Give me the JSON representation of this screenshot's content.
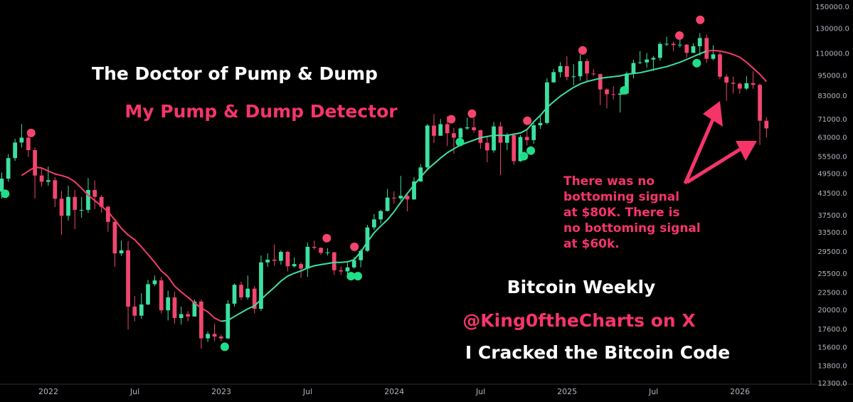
{
  "chart_data": {
    "type": "candlestick",
    "title": "The Doctor of Pump & Dump",
    "subtitle": "My Pump & Dump Detector",
    "annotation": [
      "There was no",
      "bottoming signal",
      "at $80K. There is",
      "no bottoming signal",
      "at $60k."
    ],
    "notes": [
      "Bitcoin Weekly",
      "@King0ftheCharts on X",
      "I Cracked the Bitcoin Code"
    ],
    "log_scale": true,
    "grid": false,
    "up_color": "#3de0a1",
    "down_color": "#f2466e",
    "xlim": [
      2021.72,
      2026.411
    ],
    "xticks": [
      {
        "value": 2022,
        "label": "2022"
      },
      {
        "value": 2022.5,
        "label": "Jul"
      },
      {
        "value": 2023,
        "label": "2023"
      },
      {
        "value": 2023.5,
        "label": "Jul"
      },
      {
        "value": 2024,
        "label": "2024"
      },
      {
        "value": 2024.5,
        "label": "Jul"
      },
      {
        "value": 2025,
        "label": "2025"
      },
      {
        "value": 2025.5,
        "label": "Jul"
      },
      {
        "value": 2026,
        "label": "2026"
      }
    ],
    "ylim": [
      12240,
      157300
    ],
    "yticks": [
      {
        "value": 150000,
        "label": "150000.0"
      },
      {
        "value": 130000,
        "label": "130000.0"
      },
      {
        "value": 110000,
        "label": "110000.0"
      },
      {
        "value": 95000,
        "label": "95000.0"
      },
      {
        "value": 83000,
        "label": "83000.0"
      },
      {
        "value": 71000,
        "label": "71000.0"
      },
      {
        "value": 63000,
        "label": "63000.0"
      },
      {
        "value": 55500,
        "label": "55500.0"
      },
      {
        "value": 49500,
        "label": "49500.0"
      },
      {
        "value": 43500,
        "label": "43500.0"
      },
      {
        "value": 37500,
        "label": "37500.0"
      },
      {
        "value": 33500,
        "label": "33500.0"
      },
      {
        "value": 29500,
        "label": "29500.0"
      },
      {
        "value": 25500,
        "label": "25500.0"
      },
      {
        "value": 22500,
        "label": "22500.0"
      },
      {
        "value": 20000,
        "label": "20000.0"
      },
      {
        "value": 17600,
        "label": "17600.0"
      },
      {
        "value": 15600,
        "label": "15600.0"
      },
      {
        "value": 13800,
        "label": "13800.0"
      },
      {
        "value": 12300,
        "label": "12300.0"
      }
    ],
    "x": [
      2021.73,
      2021.768,
      2021.807,
      2021.845,
      2021.884,
      2021.922,
      2021.961,
      2021.999,
      2022.038,
      2022.076,
      2022.115,
      2022.153,
      2022.192,
      2022.23,
      2022.268,
      2022.307,
      2022.345,
      2022.384,
      2022.422,
      2022.461,
      2022.499,
      2022.538,
      2022.576,
      2022.615,
      2022.653,
      2022.692,
      2022.73,
      2022.768,
      2022.807,
      2022.845,
      2022.884,
      2022.922,
      2022.961,
      2022.999,
      2023.038,
      2023.076,
      2023.115,
      2023.153,
      2023.192,
      2023.23,
      2023.268,
      2023.307,
      2023.345,
      2023.384,
      2023.422,
      2023.461,
      2023.499,
      2023.538,
      2023.576,
      2023.615,
      2023.653,
      2023.692,
      2023.73,
      2023.768,
      2023.807,
      2023.845,
      2023.884,
      2023.922,
      2023.961,
      2023.999,
      2024.038,
      2024.076,
      2024.115,
      2024.153,
      2024.192,
      2024.23,
      2024.268,
      2024.307,
      2024.345,
      2024.384,
      2024.422,
      2024.461,
      2024.499,
      2024.538,
      2024.576,
      2024.615,
      2024.653,
      2024.692,
      2024.73,
      2024.768,
      2024.807,
      2024.845,
      2024.884,
      2024.922,
      2024.961,
      2024.999,
      2025.038,
      2025.076,
      2025.115,
      2025.153,
      2025.192,
      2025.23,
      2025.268,
      2025.307,
      2025.345,
      2025.384,
      2025.422,
      2025.461,
      2025.499,
      2025.538,
      2025.576,
      2025.615,
      2025.653,
      2025.692,
      2025.73,
      2025.768,
      2025.807,
      2025.845,
      2025.884,
      2025.922,
      2025.961,
      2025.999,
      2026.038,
      2026.076,
      2026.115,
      2026.153
    ],
    "open": [
      44000,
      48000,
      55000,
      61000,
      63000,
      58000,
      49000,
      47000,
      47500,
      42000,
      37500,
      42500,
      39000,
      39000,
      44500,
      42500,
      39800,
      36000,
      29200,
      29800,
      20500,
      19300,
      20800,
      23800,
      24400,
      20000,
      21800,
      19000,
      19500,
      19200,
      21200,
      16600,
      17100,
      16800,
      16600,
      20900,
      23700,
      21800,
      23100,
      20200,
      27500,
      28000,
      27800,
      29500,
      26800,
      27200,
      26400,
      30500,
      30300,
      29300,
      29400,
      26100,
      25900,
      26600,
      27900,
      29700,
      34700,
      36600,
      38700,
      42300,
      42100,
      42800,
      41800,
      47100,
      51700,
      68300,
      63800,
      68900,
      64900,
      63000,
      67000,
      67500,
      66200,
      60900,
      57900,
      67900,
      60900,
      64100,
      53900,
      63300,
      62000,
      68400,
      69500,
      91000,
      97400,
      101400,
      94300,
      94700,
      104800,
      96500,
      96100,
      86800,
      84100,
      83800,
      84500,
      96500,
      103500,
      103900,
      105900,
      107100,
      117500,
      117600,
      116600,
      116900,
      110700,
      115700,
      122200,
      106400,
      109600,
      94500,
      90800,
      90200,
      87300,
      90500,
      89500,
      70500
    ],
    "high": [
      50000,
      56500,
      62500,
      69000,
      66000,
      59000,
      51500,
      52000,
      48500,
      44200,
      45800,
      44500,
      42500,
      48200,
      47400,
      43000,
      40100,
      36700,
      31800,
      31700,
      22000,
      22400,
      24500,
      25200,
      25000,
      22800,
      22600,
      20500,
      19900,
      21500,
      21500,
      17400,
      18300,
      17000,
      21400,
      23900,
      24200,
      25200,
      23500,
      28800,
      29200,
      31000,
      29800,
      29700,
      28400,
      27500,
      31400,
      31800,
      30400,
      30200,
      29500,
      26800,
      27400,
      28500,
      30000,
      35300,
      37900,
      39000,
      44800,
      44100,
      48900,
      43300,
      48500,
      52900,
      69000,
      73700,
      71300,
      72700,
      67200,
      67400,
      71900,
      71900,
      66400,
      63800,
      69900,
      70000,
      65000,
      64800,
      64100,
      66500,
      69400,
      73600,
      93500,
      99600,
      104000,
      108300,
      102700,
      109400,
      106500,
      99500,
      96500,
      87500,
      88800,
      86400,
      97800,
      105800,
      111900,
      110600,
      108500,
      118900,
      123200,
      119300,
      124500,
      117400,
      117900,
      126200,
      125000,
      116400,
      111200,
      96000,
      94600,
      90900,
      94800,
      97900,
      90200,
      72300
    ],
    "low": [
      42000,
      47000,
      54000,
      59000,
      55500,
      42000,
      45500,
      45800,
      39700,
      33000,
      36300,
      34300,
      37000,
      38200,
      39200,
      38200,
      33700,
      26700,
      28700,
      17600,
      18600,
      18900,
      20700,
      23500,
      19600,
      18700,
      18300,
      18200,
      18600,
      19200,
      15500,
      16200,
      16300,
      16300,
      16500,
      20500,
      21400,
      21500,
      19600,
      19900,
      26700,
      26900,
      27100,
      25900,
      26600,
      24800,
      25000,
      29900,
      28900,
      28800,
      25300,
      25300,
      24900,
      26400,
      26600,
      29500,
      34100,
      35600,
      38600,
      40600,
      41500,
      38600,
      41700,
      47000,
      50600,
      60800,
      64500,
      59600,
      56600,
      60700,
      66300,
      65100,
      58500,
      53500,
      57000,
      49100,
      58000,
      52600,
      53700,
      59800,
      60500,
      66800,
      68800,
      90700,
      94000,
      92200,
      89200,
      92000,
      91200,
      94900,
      78200,
      76600,
      81200,
      74500,
      83900,
      93400,
      102900,
      100400,
      98200,
      105100,
      115700,
      111900,
      114700,
      107300,
      110500,
      108700,
      103500,
      105400,
      93000,
      80600,
      84400,
      84500,
      86500,
      87200,
      60000,
      63200
    ],
    "close": [
      48000,
      55000,
      61000,
      63000,
      58000,
      49000,
      47000,
      47500,
      42000,
      37500,
      42500,
      39000,
      39000,
      44500,
      42500,
      39800,
      36000,
      29200,
      29800,
      20500,
      19300,
      20800,
      23800,
      24400,
      20000,
      21800,
      19000,
      19500,
      19200,
      21200,
      16600,
      17100,
      16800,
      16600,
      20900,
      23700,
      21800,
      23100,
      20200,
      27500,
      28000,
      27800,
      29500,
      26800,
      27200,
      26400,
      30500,
      30300,
      29300,
      29400,
      26100,
      25900,
      26600,
      27900,
      29700,
      34700,
      36600,
      38700,
      42300,
      42100,
      42800,
      41800,
      47100,
      51700,
      68300,
      63800,
      68900,
      64900,
      63000,
      67000,
      67500,
      66200,
      60900,
      57900,
      67900,
      60900,
      64100,
      53900,
      63300,
      62000,
      68400,
      69500,
      91000,
      97400,
      101400,
      94300,
      94700,
      104800,
      96500,
      96100,
      86800,
      84100,
      83800,
      84500,
      96500,
      103500,
      103900,
      105900,
      107100,
      117500,
      117600,
      116600,
      116900,
      110700,
      115700,
      122200,
      106400,
      109600,
      94500,
      90800,
      90200,
      87300,
      90500,
      89500,
      70500,
      67000
    ],
    "lines": [
      {
        "color": "#f23d6a",
        "values": [
          null,
          null,
          null,
          49000,
          50500,
          51800,
          51500,
          50500,
          49500,
          49000,
          48300,
          47000,
          45000,
          43000,
          41500,
          40000,
          38500,
          36500,
          34500,
          33000,
          32000,
          30500,
          29000,
          27500,
          26000,
          25000,
          23500,
          22600,
          21800,
          21000,
          20300,
          19800,
          19000,
          18600,
          null,
          null,
          null,
          null,
          null,
          null,
          null,
          null,
          null,
          null,
          null,
          null,
          null,
          null,
          null,
          null,
          null,
          null,
          null,
          null,
          null,
          null,
          null,
          null,
          null,
          null,
          null,
          null,
          null,
          null,
          null,
          null,
          null,
          null,
          null,
          null,
          null,
          null,
          null,
          null,
          null,
          null,
          null,
          null,
          null,
          null,
          null,
          null,
          null,
          null,
          null,
          null,
          null,
          null,
          null,
          null,
          null,
          null,
          null,
          null,
          null,
          null,
          null,
          null,
          null,
          null,
          null,
          null,
          null,
          null,
          null,
          null,
          112000,
          112500,
          112000,
          111000,
          109500,
          107500,
          104000,
          100000,
          96000,
          91500
        ]
      },
      {
        "color": "#3de0a1",
        "values": [
          null,
          null,
          null,
          null,
          null,
          null,
          null,
          null,
          null,
          null,
          null,
          null,
          null,
          null,
          null,
          null,
          null,
          null,
          null,
          null,
          null,
          null,
          null,
          null,
          null,
          null,
          null,
          null,
          null,
          null,
          null,
          null,
          null,
          18600,
          18700,
          19200,
          19700,
          20200,
          20600,
          21500,
          22400,
          23300,
          24300,
          25100,
          25600,
          26000,
          26500,
          26900,
          27100,
          27300,
          27500,
          27500,
          27600,
          28000,
          29500,
          31500,
          33500,
          35000,
          36500,
          38500,
          41000,
          43500,
          46000,
          48500,
          51000,
          53000,
          55000,
          57000,
          58500,
          60000,
          61000,
          62000,
          63000,
          63500,
          64000,
          64000,
          64000,
          64500,
          65000,
          66500,
          70000,
          73000,
          77000,
          80000,
          83000,
          85500,
          88000,
          90000,
          91500,
          92500,
          93500,
          94000,
          94500,
          95000,
          96000,
          96500,
          97000,
          98000,
          99000,
          100000,
          101000,
          102500,
          104000,
          106000,
          108000,
          110000,
          112000,
          null,
          null,
          null,
          null,
          null,
          null,
          null,
          null,
          null
        ]
      }
    ],
    "signals": [
      {
        "color": "#f5456d",
        "x": [
          2021.9,
          2023.61,
          2023.77,
          2024.33,
          2024.45,
          2024.77,
          2025.09,
          2025.65,
          2025.77
        ],
        "y": [
          65000,
          32300,
          30500,
          71200,
          73900,
          70500,
          112500,
          124200,
          137900
        ]
      },
      {
        "color": "#22dd88",
        "x": [
          2021.75,
          2023.02,
          2023.75,
          2023.79,
          2024.38,
          2024.75,
          2024.79,
          2025.33,
          2025.75
        ],
        "y": [
          43400,
          15700,
          25100,
          25100,
          61200,
          55700,
          57800,
          86300,
          103400
        ]
      }
    ]
  }
}
